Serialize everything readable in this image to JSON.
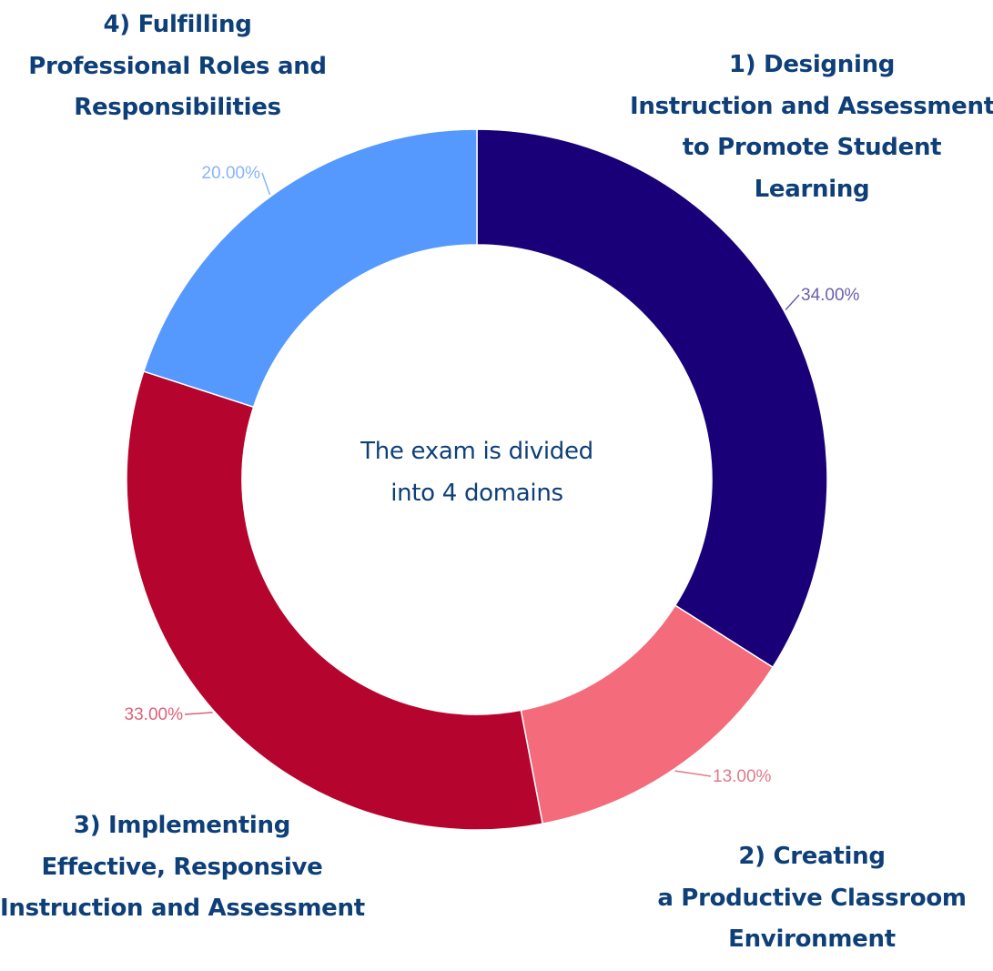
{
  "chart_data": {
    "type": "pie",
    "subtype": "donut",
    "title": "",
    "center_text": [
      "The exam is divided",
      "into 4 domains"
    ],
    "categories": [
      "1) Designing Instruction and Assessment to Promote Student Learning",
      "2) Creating a Productive Classroom Environment",
      "3) Implementing Effective, Responsive Instruction and Assessment",
      "4) Fulfilling Professional Roles and Responsibilities"
    ],
    "values": [
      34,
      13,
      33,
      20
    ],
    "value_labels": [
      "34.00%",
      "13.00%",
      "33.00%",
      "20.00%"
    ],
    "colors": [
      "#1a0078",
      "#f46b7b",
      "#b5052e",
      "#5599ff"
    ],
    "label_colors": [
      "#6b5fad",
      "#e07a8a",
      "#e0607a",
      "#8ab4f8"
    ],
    "start_angle": "12 o'clock",
    "direction": "clockwise",
    "legend": "none (labels placed around chart)"
  },
  "center": {
    "line1": "The exam is divided",
    "line2": "into 4 domains"
  },
  "labels": {
    "d1": [
      "1) Designing",
      "Instruction and Assessment",
      "to Promote Student",
      "Learning"
    ],
    "d2": [
      "2) Creating",
      "a Productive Classroom",
      "Environment"
    ],
    "d3": [
      "3) Implementing",
      "Effective, Responsive",
      "Instruction and Assessment"
    ],
    "d4": [
      "4) Fulfilling",
      "Professional Roles and",
      "Responsibilities"
    ]
  },
  "text_color": "#0e3f78"
}
